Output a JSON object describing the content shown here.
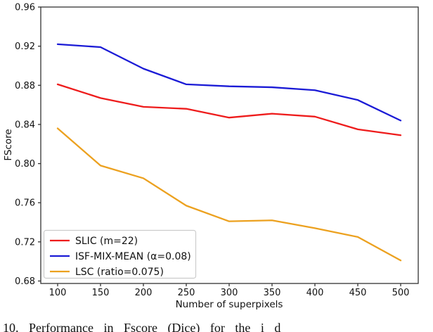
{
  "figure": {
    "caption_fragment": "10.    Performance in Fscore (Dice) for the i        d"
  },
  "chart_data": {
    "type": "line",
    "title": "",
    "xlabel": "Number of superpixels",
    "ylabel": "FScore",
    "x": [
      100,
      150,
      200,
      250,
      300,
      350,
      400,
      450,
      500
    ],
    "xticks": [
      100,
      150,
      200,
      250,
      300,
      350,
      400,
      450,
      500
    ],
    "yticks": [
      0.68,
      0.72,
      0.76,
      0.8,
      0.84,
      0.88,
      0.92,
      0.96
    ],
    "ylim": [
      0.68,
      0.96
    ],
    "xlim": [
      90,
      510
    ],
    "grid": false,
    "legend_position": "lower-left",
    "axis_color": "#333333",
    "series": [
      {
        "name": "SLIC (m=22)",
        "color": "#ee1c1c",
        "values": [
          0.881,
          0.867,
          0.858,
          0.856,
          0.847,
          0.851,
          0.848,
          0.835,
          0.829
        ]
      },
      {
        "name": "ISF-MIX-MEAN (α=0.08)",
        "color": "#1b1bd6",
        "values": [
          0.922,
          0.919,
          0.897,
          0.881,
          0.879,
          0.878,
          0.875,
          0.865,
          0.844
        ]
      },
      {
        "name": "LSC (ratio=0.075)",
        "color": "#eca11f",
        "values": [
          0.836,
          0.798,
          0.785,
          0.757,
          0.741,
          0.742,
          0.734,
          0.725,
          0.701
        ]
      }
    ]
  }
}
